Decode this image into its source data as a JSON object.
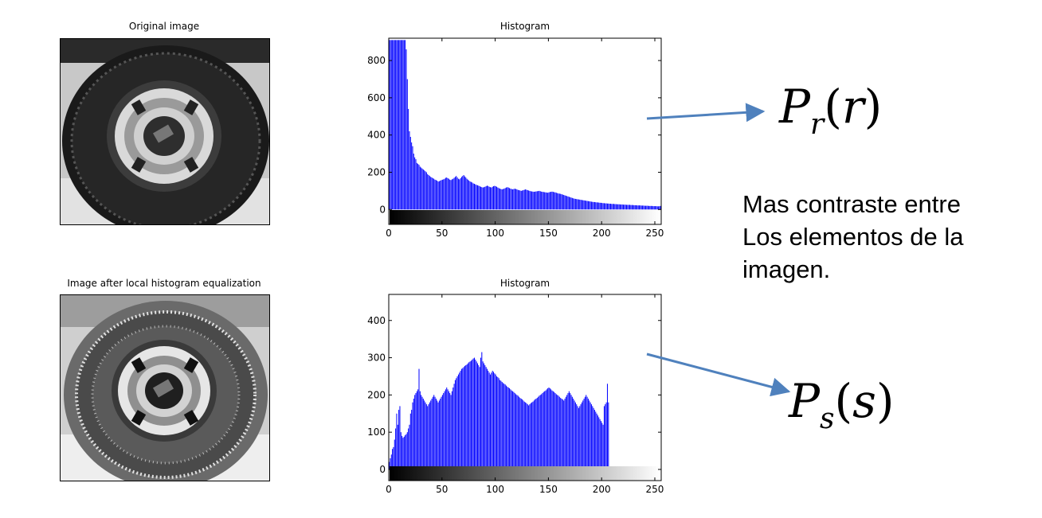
{
  "panels": {
    "original_title": "Original image",
    "equalized_title": "Image after local histogram equalization"
  },
  "chart_data": [
    {
      "type": "bar",
      "title": "Histogram",
      "xlabel": "",
      "ylabel": "",
      "xlim": [
        0,
        256
      ],
      "ylim": [
        -80,
        920
      ],
      "xticks": [
        0,
        50,
        100,
        150,
        200,
        250
      ],
      "yticks": [
        0,
        200,
        400,
        600,
        800
      ],
      "bar_color": "#0000ff",
      "grid": false,
      "values": [
        910,
        910,
        910,
        910,
        910,
        910,
        910,
        910,
        910,
        910,
        910,
        910,
        910,
        910,
        910,
        910,
        860,
        700,
        540,
        420,
        390,
        360,
        340,
        300,
        280,
        270,
        250,
        245,
        240,
        230,
        225,
        220,
        215,
        210,
        205,
        200,
        190,
        185,
        180,
        175,
        172,
        168,
        165,
        160,
        158,
        155,
        150,
        152,
        155,
        158,
        160,
        162,
        165,
        170,
        172,
        168,
        165,
        160,
        158,
        162,
        165,
        170,
        175,
        180,
        172,
        165,
        162,
        168,
        175,
        180,
        185,
        178,
        172,
        165,
        160,
        155,
        150,
        148,
        145,
        140,
        138,
        135,
        132,
        130,
        128,
        125,
        122,
        120,
        118,
        120,
        122,
        125,
        128,
        126,
        122,
        120,
        118,
        122,
        125,
        127,
        125,
        122,
        118,
        115,
        112,
        110,
        108,
        110,
        112,
        115,
        118,
        120,
        118,
        115,
        112,
        110,
        108,
        110,
        112,
        110,
        108,
        105,
        104,
        102,
        100,
        102,
        104,
        106,
        108,
        106,
        104,
        102,
        100,
        98,
        97,
        96,
        95,
        96,
        97,
        98,
        99,
        100,
        98,
        96,
        95,
        94,
        93,
        92,
        91,
        90,
        92,
        94,
        95,
        96,
        95,
        93,
        92,
        90,
        88,
        86,
        85,
        84,
        82,
        80,
        78,
        76,
        74,
        72,
        70,
        68,
        66,
        64,
        62,
        60,
        58,
        57,
        56,
        55,
        54,
        53,
        52,
        51,
        50,
        49,
        48,
        47,
        46,
        45,
        44,
        43,
        42,
        41,
        40,
        40,
        39,
        38,
        38,
        37,
        36,
        36,
        35,
        34,
        34,
        33,
        33,
        32,
        32,
        31,
        31,
        30,
        30,
        30,
        29,
        29,
        28,
        28,
        28,
        27,
        27,
        27,
        26,
        26,
        26,
        25,
        25,
        25,
        25,
        24,
        24,
        24,
        23,
        23,
        23,
        22,
        22,
        22,
        22,
        21,
        21,
        21,
        20,
        20,
        20,
        20,
        19,
        19,
        19,
        19,
        18,
        18,
        18,
        18,
        17,
        17,
        18,
        19,
        20,
        22,
        25,
        30,
        40,
        70
      ]
    },
    {
      "type": "bar",
      "title": "Histogram",
      "xlabel": "",
      "ylabel": "",
      "xlim": [
        0,
        256
      ],
      "ylim": [
        -30,
        470
      ],
      "xticks": [
        0,
        50,
        100,
        150,
        200,
        250
      ],
      "yticks": [
        0,
        100,
        200,
        300,
        400
      ],
      "bar_color": "#0000ff",
      "grid": false,
      "values": [
        20,
        30,
        40,
        55,
        60,
        80,
        110,
        150,
        120,
        160,
        170,
        100,
        90,
        85,
        88,
        92,
        95,
        100,
        110,
        120,
        150,
        160,
        180,
        190,
        200,
        205,
        210,
        215,
        270,
        210,
        200,
        195,
        190,
        185,
        180,
        175,
        170,
        175,
        180,
        185,
        190,
        195,
        200,
        195,
        190,
        185,
        180,
        185,
        190,
        195,
        200,
        205,
        210,
        215,
        220,
        215,
        210,
        205,
        200,
        210,
        220,
        230,
        240,
        245,
        250,
        255,
        260,
        265,
        270,
        272,
        275,
        278,
        280,
        282,
        285,
        288,
        290,
        292,
        295,
        298,
        300,
        295,
        290,
        285,
        280,
        275,
        300,
        315,
        290,
        285,
        280,
        275,
        270,
        265,
        260,
        255,
        260,
        265,
        262,
        258,
        255,
        250,
        248,
        245,
        240,
        238,
        235,
        232,
        230,
        228,
        225,
        222,
        220,
        218,
        215,
        212,
        210,
        208,
        205,
        202,
        200,
        198,
        195,
        192,
        190,
        188,
        185,
        182,
        180,
        178,
        175,
        172,
        175,
        178,
        180,
        182,
        185,
        188,
        190,
        192,
        195,
        198,
        200,
        202,
        205,
        208,
        210,
        212,
        215,
        218,
        220,
        218,
        215,
        212,
        210,
        208,
        205,
        202,
        200,
        198,
        195,
        192,
        190,
        188,
        185,
        190,
        195,
        200,
        205,
        210,
        205,
        200,
        195,
        190,
        185,
        180,
        175,
        170,
        165,
        170,
        175,
        180,
        185,
        190,
        195,
        200,
        195,
        190,
        185,
        180,
        175,
        170,
        165,
        160,
        155,
        150,
        145,
        140,
        135,
        130,
        125,
        120,
        170,
        175,
        180,
        230,
        180
      ]
    }
  ],
  "formulas": {
    "top": {
      "letter": "P",
      "sub": "r",
      "arg": "r"
    },
    "bottom": {
      "letter": "P",
      "sub": "s",
      "arg": "s"
    }
  },
  "note": {
    "lines": [
      "Mas contraste entre",
      "Los elementos de la",
      "imagen."
    ]
  },
  "colors": {
    "arrow": "#4f81bd",
    "bar": "#0000ff"
  }
}
